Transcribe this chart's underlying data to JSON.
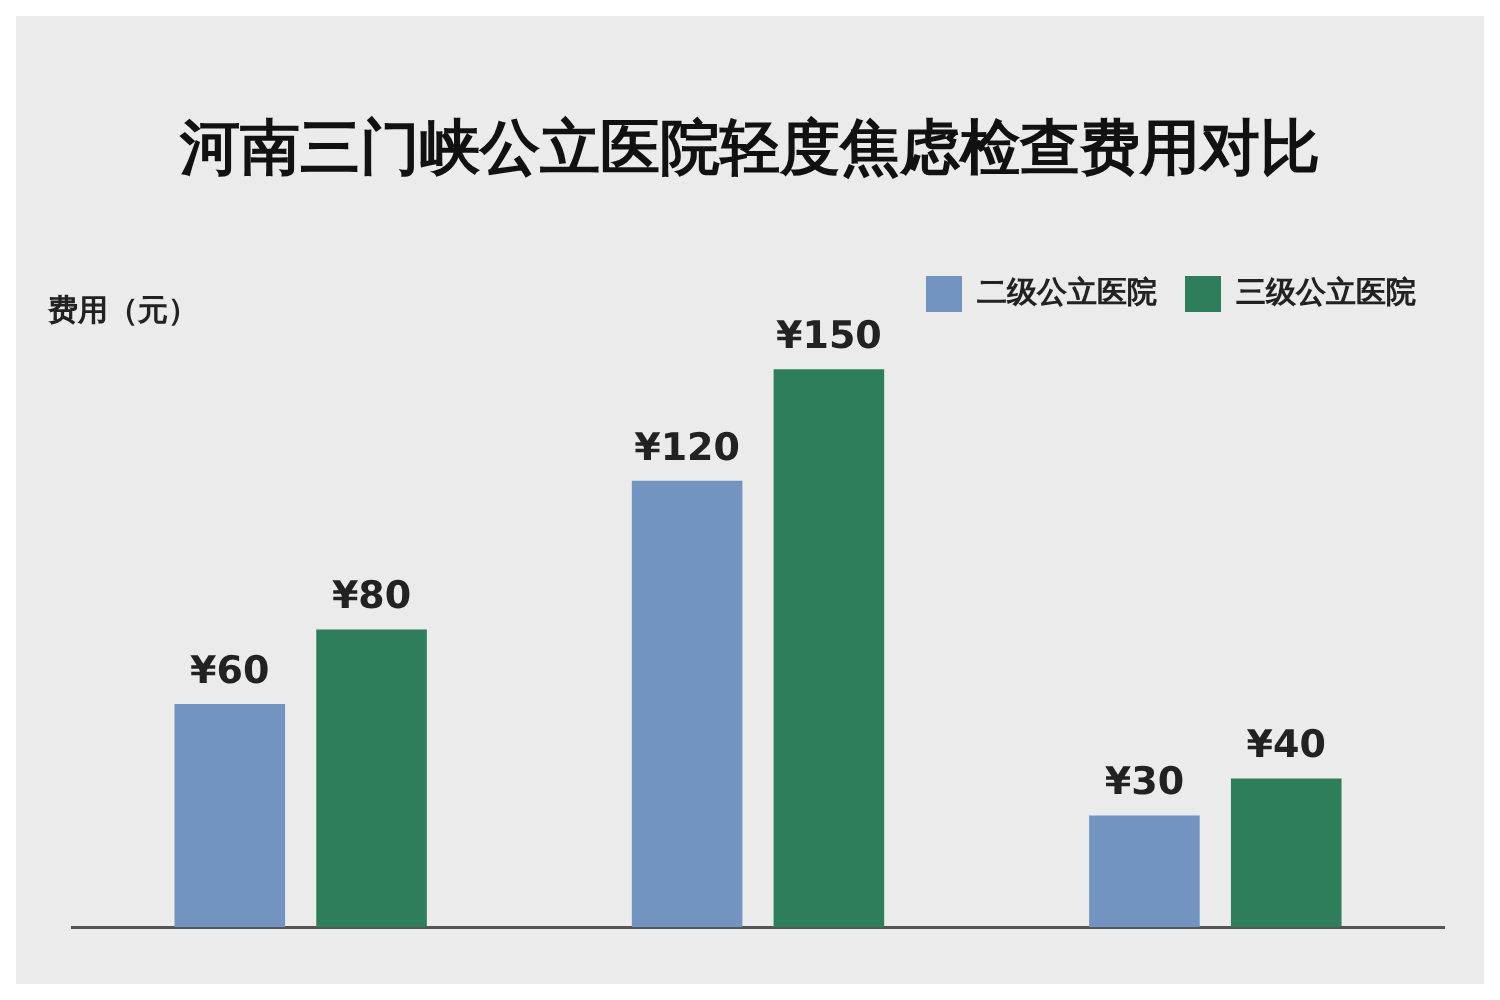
{
  "chart_data": {
    "type": "bar",
    "title": "河南三门峡公立医院轻度焦虑检查费用对比",
    "ylabel": "费用（元）",
    "categories": [
      null,
      null,
      null
    ],
    "series": [
      {
        "name": "二级公立医院",
        "color": "#7394c0",
        "values": [
          60,
          120,
          30
        ],
        "value_labels": [
          "¥60",
          "¥120",
          "¥30"
        ]
      },
      {
        "name": "三级公立医院",
        "color": "#2e7d5b",
        "values": [
          80,
          150,
          40
        ],
        "value_labels": [
          "¥80",
          "¥150",
          "¥40"
        ]
      }
    ],
    "legend": "top right",
    "grid": false
  }
}
